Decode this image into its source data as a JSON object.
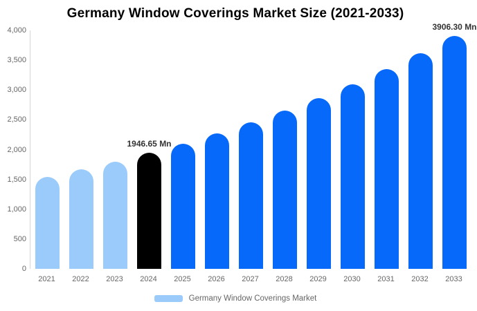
{
  "title": "Germany Window Coverings Market Size (2021-2033)",
  "legend": {
    "label": "Germany Window Coverings Market",
    "swatch_color": "#9bcbfb"
  },
  "colors": {
    "historical_bar": "#9bcbfb",
    "base_year_bar": "#000000",
    "forecast_bar": "#0669fa",
    "axis_line": "#d6d6d6",
    "tick_text": "#666666",
    "annotation_text": "#333333",
    "title_text": "#000000",
    "background": "#ffffff"
  },
  "chart_data": {
    "type": "bar",
    "title": "Germany Window Coverings Market Size (2021-2033)",
    "unit": "Mn",
    "xlabel": "",
    "ylabel": "",
    "categories": [
      "2021",
      "2022",
      "2023",
      "2024",
      "2025",
      "2026",
      "2027",
      "2028",
      "2029",
      "2030",
      "2031",
      "2032",
      "2033"
    ],
    "values": [
      1543,
      1668,
      1802,
      1946.65,
      2103,
      2273,
      2455,
      2653,
      2866,
      3097,
      3346,
      3616,
      3906.3
    ],
    "bar_colors": [
      "#9bcbfb",
      "#9bcbfb",
      "#9bcbfb",
      "#000000",
      "#0669fa",
      "#0669fa",
      "#0669fa",
      "#0669fa",
      "#0669fa",
      "#0669fa",
      "#0669fa",
      "#0669fa",
      "#0669fa"
    ],
    "annotations": [
      {
        "index": 3,
        "text": "1946.65 Mn"
      },
      {
        "index": 12,
        "text": "3906.30 Mn"
      }
    ],
    "ylim": [
      0,
      4000
    ],
    "yticks": [
      0,
      500,
      1000,
      1500,
      2000,
      2500,
      3000,
      3500,
      4000
    ],
    "ytick_labels": [
      "0",
      "500",
      "1,000",
      "1,500",
      "2,000",
      "2,500",
      "3,000",
      "3,500",
      "4,000"
    ],
    "grid": false,
    "legend_position": "bottom"
  }
}
